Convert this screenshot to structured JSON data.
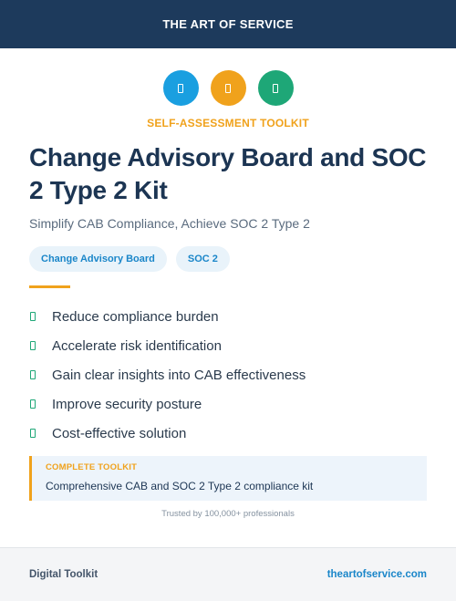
{
  "header": {
    "title": "THE ART OF SERVICE"
  },
  "icons": [
    {
      "name": "document-icon",
      "color": "#1a9fe0"
    },
    {
      "name": "document-icon",
      "color": "#f0a21c"
    },
    {
      "name": "document-icon",
      "color": "#1ea777"
    }
  ],
  "eyebrow": "SELF-ASSESSMENT TOOLKIT",
  "title": "Change Advisory Board and SOC 2 Type 2 Kit",
  "subtitle": "Simplify CAB Compliance, Achieve SOC 2 Type 2",
  "tags": [
    "Change Advisory Board",
    "SOC 2"
  ],
  "benefits": [
    "Reduce compliance burden",
    "Accelerate risk identification",
    "Gain clear insights into CAB effectiveness",
    "Improve security posture",
    "Cost-effective solution"
  ],
  "callout": {
    "label": "COMPLETE TOOLKIT",
    "text": "Comprehensive CAB and SOC 2 Type 2 compliance kit"
  },
  "trusted": "Trusted by 100,000+ professionals",
  "footer": {
    "left": "Digital Toolkit",
    "right": "theartofservice.com"
  },
  "colors": {
    "navy": "#1d3a5c",
    "orange": "#f0a21c",
    "blue": "#1a86c9",
    "green": "#1ea777"
  }
}
